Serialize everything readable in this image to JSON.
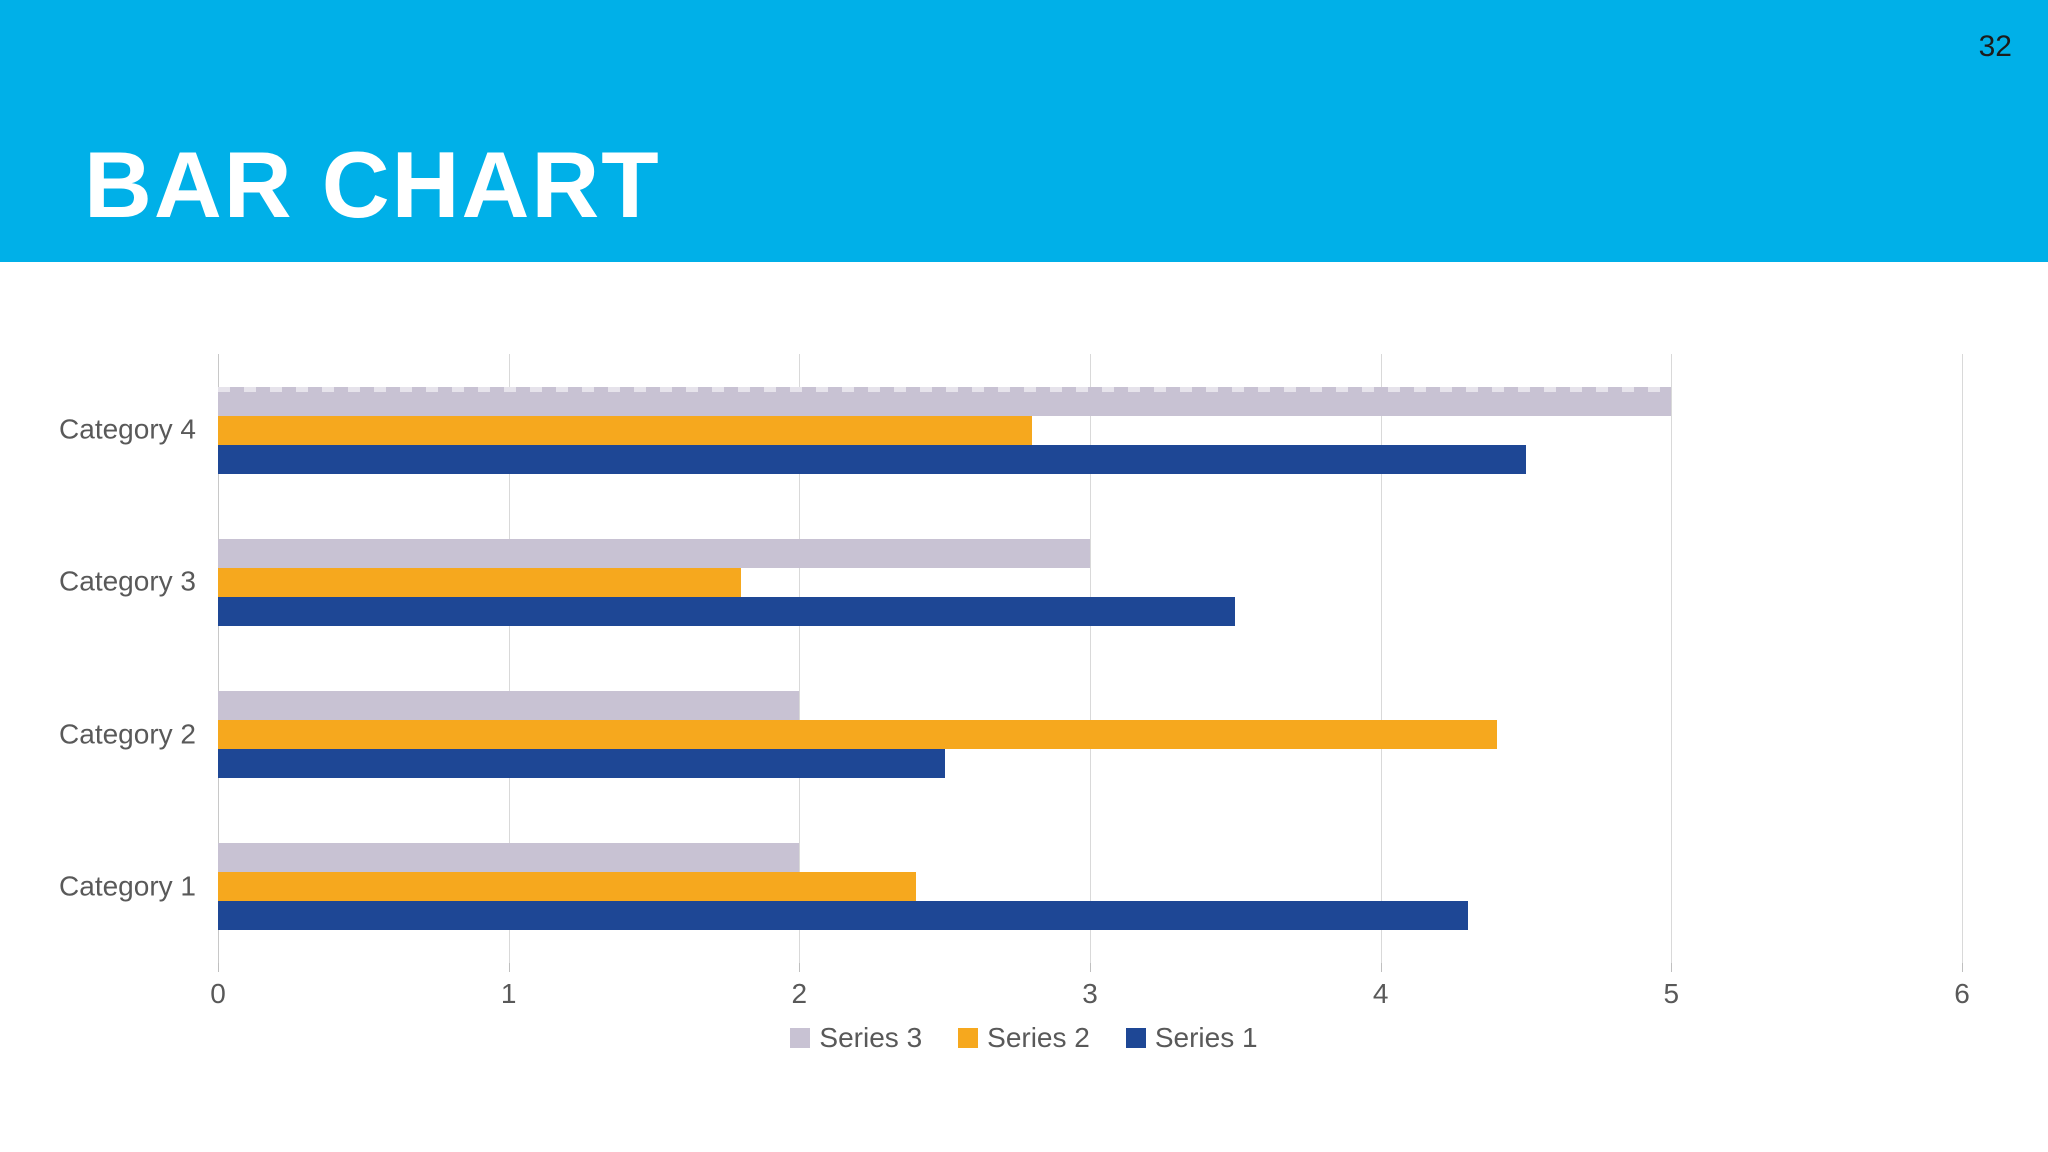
{
  "page": {
    "number": "32"
  },
  "header": {
    "title": "BAR CHART",
    "background": "#00B0E8"
  },
  "chart_data": {
    "type": "bar",
    "orientation": "horizontal",
    "title": "",
    "xlabel": "",
    "ylabel": "",
    "categories": [
      "Category 1",
      "Category 2",
      "Category 3",
      "Category 4"
    ],
    "series": [
      {
        "name": "Series 1",
        "color": "#1E4795",
        "values": [
          4.3,
          2.5,
          3.5,
          4.5
        ]
      },
      {
        "name": "Series 2",
        "color": "#F6A81E",
        "values": [
          2.4,
          4.4,
          1.8,
          2.8
        ]
      },
      {
        "name": "Series 3",
        "color": "#C8C2D3",
        "values": [
          2.0,
          2.0,
          3.0,
          5.0
        ]
      }
    ],
    "xlim": [
      0,
      6
    ],
    "x_ticks": [
      0,
      1,
      2,
      3,
      4,
      5,
      6
    ],
    "grid": "vertical",
    "gridline_color": "#D9D9D9",
    "text_color": "#595959",
    "legend_position": "bottom",
    "legend_order": [
      "Series 3",
      "Series 2",
      "Series 1"
    ]
  }
}
